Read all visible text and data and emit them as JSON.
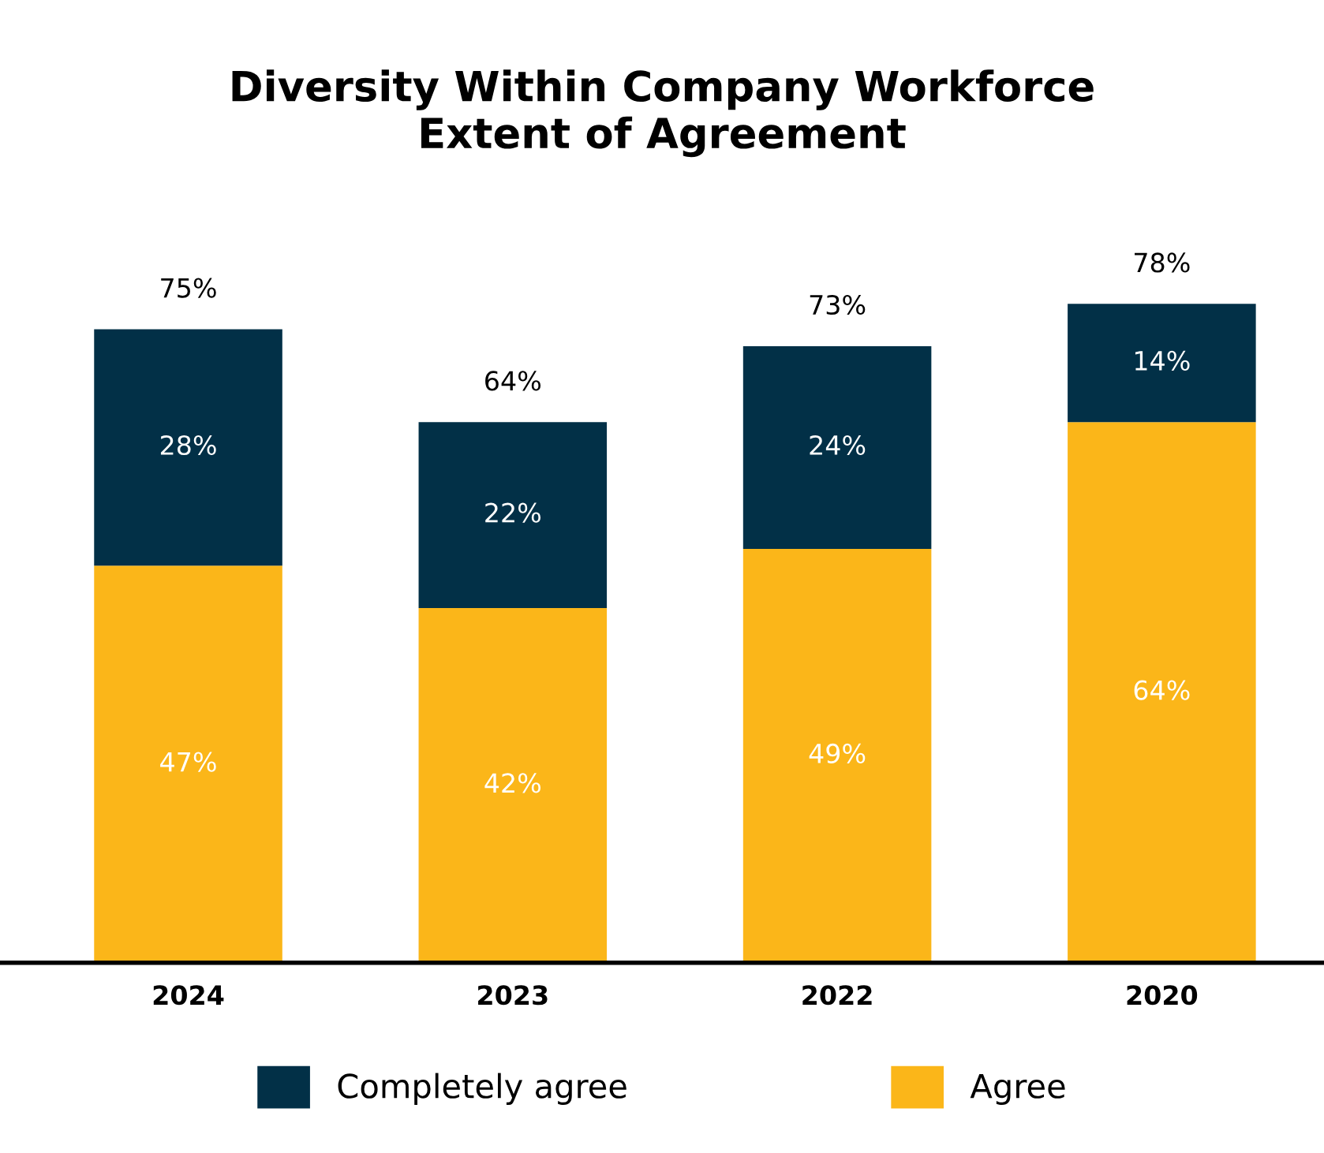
{
  "chart_data": {
    "type": "bar",
    "title": "Diversity Within Company Workforce\nExtent of Agreement",
    "categories": [
      "2024",
      "2023",
      "2022",
      "2020"
    ],
    "stacked": true,
    "series": [
      {
        "name": "Agree",
        "color": "#fbb619",
        "values": [
          47,
          42,
          49,
          64
        ],
        "value_labels": [
          "47%",
          "42%",
          "49%",
          "64%"
        ]
      },
      {
        "name": "Completely agree",
        "color": "#023047",
        "values": [
          28,
          22,
          24,
          14
        ],
        "value_labels": [
          "28%",
          "22%",
          "24%",
          "14%"
        ]
      }
    ],
    "totals": [
      "75%",
      "64%",
      "73%",
      "78%"
    ],
    "legend": "bottom",
    "grid": false
  }
}
